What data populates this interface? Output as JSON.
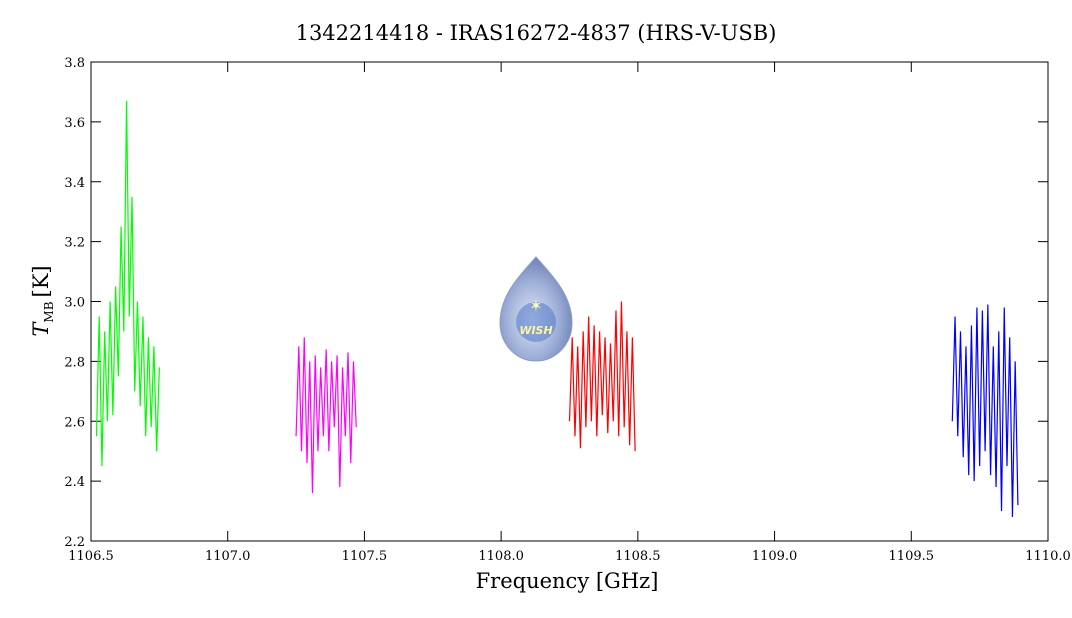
{
  "chart_data": {
    "type": "line",
    "title": "1342214418 - IRAS16272-4837 (HRS-V-USB)",
    "xlabel": "Frequency [GHz]",
    "ylabel": {
      "symbol": "T",
      "subscript": "MB",
      "unit": "[K]"
    },
    "logo": "WISH",
    "xlim": [
      1106.5,
      1110.0
    ],
    "ylim": [
      2.2,
      3.8
    ],
    "xticks": [
      1106.5,
      {
        "value": 1107,
        "label": "1107.0"
      },
      1107.5,
      {
        "value": 1108,
        "label": "1108.0"
      },
      1108.5,
      {
        "value": 1109,
        "label": "1109.0"
      },
      1109.5,
      {
        "value": 1110,
        "label": "1110.0"
      }
    ],
    "yticks": [
      2.2,
      2.4,
      2.6,
      2.8,
      {
        "value": 3,
        "label": "3.0"
      },
      3.2,
      3.4,
      3.6,
      3.8
    ],
    "series": [
      {
        "color": "#00ff00",
        "x": [
          1106.52,
          1106.53,
          1106.54,
          1106.55,
          1106.56,
          1106.57,
          1106.58,
          1106.59,
          1106.6,
          1106.61,
          1106.62,
          1106.63,
          1106.64,
          1106.65,
          1106.66,
          1106.67,
          1106.68,
          1106.69,
          1106.7,
          1106.71,
          1106.72,
          1106.73,
          1106.74,
          1106.75
        ],
        "values": [
          2.55,
          2.95,
          2.45,
          2.9,
          2.6,
          3.0,
          2.62,
          3.05,
          2.75,
          3.25,
          2.9,
          3.67,
          2.95,
          3.35,
          2.7,
          3.0,
          2.65,
          2.95,
          2.55,
          2.88,
          2.58,
          2.85,
          2.5,
          2.78
        ]
      },
      {
        "color": "#ff00ff",
        "x": [
          1107.25,
          1107.26,
          1107.27,
          1107.28,
          1107.29,
          1107.3,
          1107.31,
          1107.32,
          1107.33,
          1107.34,
          1107.35,
          1107.36,
          1107.37,
          1107.38,
          1107.39,
          1107.4,
          1107.41,
          1107.42,
          1107.43,
          1107.44,
          1107.45,
          1107.46,
          1107.47
        ],
        "values": [
          2.55,
          2.85,
          2.5,
          2.88,
          2.46,
          2.8,
          2.36,
          2.82,
          2.5,
          2.78,
          2.55,
          2.84,
          2.5,
          2.8,
          2.58,
          2.82,
          2.38,
          2.78,
          2.55,
          2.83,
          2.46,
          2.8,
          2.58
        ]
      },
      {
        "color": "#ff0000",
        "x": [
          1108.25,
          1108.26,
          1108.27,
          1108.28,
          1108.29,
          1108.3,
          1108.31,
          1108.32,
          1108.33,
          1108.34,
          1108.35,
          1108.36,
          1108.37,
          1108.38,
          1108.39,
          1108.4,
          1108.41,
          1108.42,
          1108.43,
          1108.44,
          1108.45,
          1108.46,
          1108.47,
          1108.48,
          1108.49
        ],
        "values": [
          2.6,
          2.88,
          2.55,
          2.85,
          2.51,
          2.9,
          2.58,
          2.95,
          2.6,
          2.92,
          2.55,
          2.9,
          2.62,
          2.88,
          2.56,
          2.86,
          2.6,
          2.97,
          2.55,
          3.0,
          2.58,
          2.9,
          2.52,
          2.88,
          2.5
        ]
      },
      {
        "color": "#0000ff",
        "x": [
          1109.65,
          1109.66,
          1109.67,
          1109.68,
          1109.69,
          1109.7,
          1109.71,
          1109.72,
          1109.73,
          1109.74,
          1109.75,
          1109.76,
          1109.77,
          1109.78,
          1109.79,
          1109.8,
          1109.81,
          1109.82,
          1109.83,
          1109.84,
          1109.85,
          1109.86,
          1109.87,
          1109.88,
          1109.89
        ],
        "values": [
          2.6,
          2.95,
          2.55,
          2.9,
          2.48,
          2.85,
          2.42,
          2.92,
          2.4,
          2.98,
          2.45,
          2.97,
          2.5,
          2.99,
          2.42,
          2.85,
          2.38,
          2.9,
          2.3,
          2.98,
          2.45,
          2.88,
          2.28,
          2.8,
          2.32
        ]
      }
    ]
  }
}
